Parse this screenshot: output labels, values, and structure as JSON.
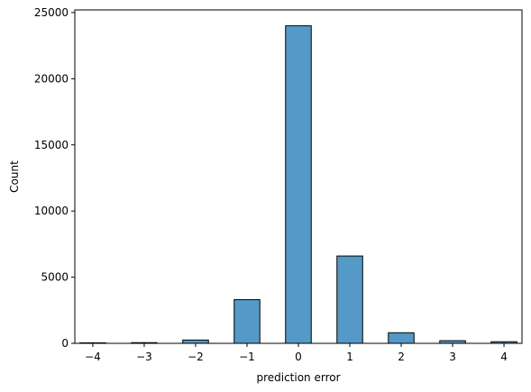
{
  "chart_data": {
    "type": "bar",
    "xlabel": "prediction error",
    "ylabel": "Count",
    "x": [
      -4,
      -3,
      -2,
      -1,
      0,
      1,
      2,
      3,
      4
    ],
    "values": [
      40,
      50,
      250,
      3300,
      24000,
      6600,
      800,
      200,
      120
    ],
    "xticks": [
      -4,
      -3,
      -2,
      -1,
      0,
      1,
      2,
      3,
      4
    ],
    "xtick_labels": [
      "−4",
      "−3",
      "−2",
      "−1",
      "0",
      "1",
      "2",
      "3",
      "4"
    ],
    "yticks": [
      0,
      5000,
      10000,
      15000,
      20000,
      25000
    ],
    "ytick_labels": [
      "0",
      "5000",
      "10000",
      "15000",
      "20000",
      "25000"
    ],
    "ylim": [
      0,
      25200
    ],
    "xlim": [
      -4.35,
      4.35
    ],
    "grid": false,
    "colors": {
      "bar": "#5499c7",
      "edge": "#000000"
    }
  }
}
